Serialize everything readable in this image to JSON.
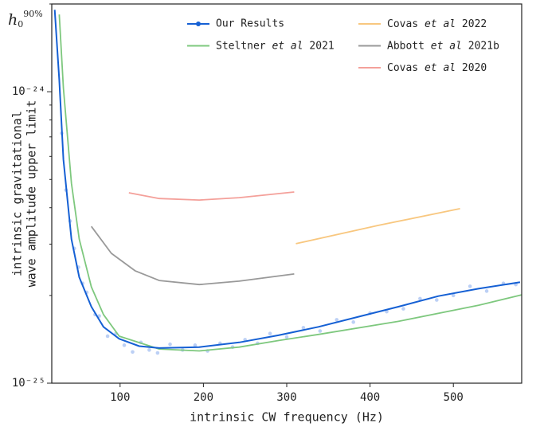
{
  "chart_data": {
    "type": "line",
    "annotation": {
      "base": "h",
      "sub": "0",
      "sup": "90%"
    },
    "xlabel": "intrinsic CW frequency (Hz)",
    "ylabel": [
      "intrinsic gravitational",
      "wave amplitude upper limit"
    ],
    "xlim": [
      18,
      582
    ],
    "xticks": [
      100,
      200,
      300,
      400,
      500
    ],
    "ylim": [
      1e-25,
      2e-24
    ],
    "yticks": [
      {
        "value": 1e-24,
        "label": "10⁻²⁴"
      },
      {
        "value": 1e-25,
        "label": "10⁻²⁵"
      }
    ],
    "yminorticks": [
      2e-25,
      3e-25,
      4e-25,
      5e-25,
      6e-25,
      7e-25,
      8e-25,
      9e-25,
      2e-24
    ],
    "yscale": "log",
    "grid": false,
    "legend": "upper right",
    "series": [
      {
        "name": "Our Results",
        "color": "#1560d4",
        "marker": "o",
        "x": [
          21.5,
          27,
          32,
          41.6,
          51,
          65.5,
          80,
          99,
          123,
          147,
          195,
          243,
          290,
          338,
          386,
          434,
          482,
          530,
          580
        ],
        "values": [
          1.91e-24,
          1.1e-24,
          5.86e-25,
          3.12e-25,
          2.31e-25,
          1.83e-25,
          1.56e-25,
          1.42e-25,
          1.34e-25,
          1.32e-25,
          1.33e-25,
          1.38e-25,
          1.46e-25,
          1.56e-25,
          1.69e-25,
          1.83e-25,
          1.99e-25,
          2.11e-25,
          2.22e-25
        ]
      },
      {
        "name": "Steltner et al 2021",
        "color": "#7ec87e",
        "x": [
          27,
          32,
          41.6,
          51,
          65.5,
          80,
          99,
          147,
          195,
          243,
          290,
          338,
          434,
          530,
          582
        ],
        "values": [
          1.84e-24,
          1.03e-24,
          4.85e-25,
          3.12e-25,
          2.14e-25,
          1.72e-25,
          1.45e-25,
          1.31e-25,
          1.29e-25,
          1.33e-25,
          1.4e-25,
          1.47e-25,
          1.63e-25,
          1.85e-25,
          2.01e-25
        ]
      },
      {
        "name": "Covas et al 2022",
        "color": "#f8c77f",
        "x": [
          311,
          410,
          508
        ],
        "values": [
          3.01e-25,
          3.48e-25,
          3.97e-25
        ]
      },
      {
        "name": "Abbott et al 2021b",
        "color": "#999999",
        "x": [
          65.5,
          89.5,
          118,
          147,
          195,
          243,
          309
        ],
        "values": [
          3.45e-25,
          2.79e-25,
          2.43e-25,
          2.25e-25,
          2.18e-25,
          2.24e-25,
          2.37e-25
        ]
      },
      {
        "name": "Covas et al 2020",
        "color": "#f4a09a",
        "x": [
          110.5,
          147,
          195,
          243,
          309
        ],
        "values": [
          4.5e-25,
          4.3e-25,
          4.25e-25,
          4.33e-25,
          4.53e-25
        ]
      }
    ],
    "scatter": {
      "color": "#8fb0ee",
      "x": [
        30,
        35,
        40,
        45,
        50,
        55,
        60,
        70,
        75,
        85,
        95,
        105,
        115,
        125,
        135,
        145,
        160,
        175,
        190,
        205,
        220,
        235,
        250,
        265,
        280,
        300,
        320,
        340,
        360,
        380,
        400,
        420,
        440,
        460,
        480,
        500,
        520,
        540,
        560,
        575
      ],
      "values": [
        7.2e-25,
        4.6e-25,
        3.6e-25,
        2.9e-25,
        2.5e-25,
        2.2e-25,
        2.05e-25,
        1.72e-25,
        1.7e-25,
        1.45e-25,
        1.48e-25,
        1.35e-25,
        1.28e-25,
        1.38e-25,
        1.3e-25,
        1.27e-25,
        1.36e-25,
        1.3e-25,
        1.35e-25,
        1.29e-25,
        1.37e-25,
        1.33e-25,
        1.41e-25,
        1.37e-25,
        1.48e-25,
        1.44e-25,
        1.55e-25,
        1.51e-25,
        1.65e-25,
        1.62e-25,
        1.74e-25,
        1.76e-25,
        1.8e-25,
        1.95e-25,
        1.93e-25,
        2e-25,
        2.15e-25,
        2.07e-25,
        2.2e-25,
        2.18e-25
      ]
    }
  }
}
